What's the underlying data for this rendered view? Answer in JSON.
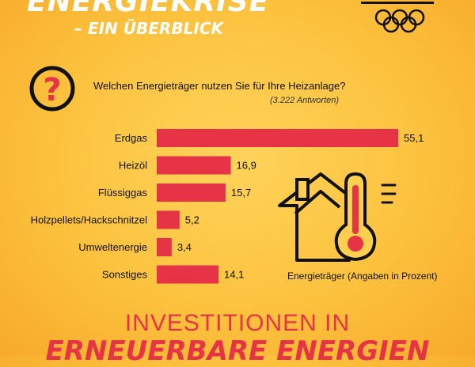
{
  "header": {
    "title": "ENERGIEKRISE",
    "subtitle": "– EIN ÜBERBLICK"
  },
  "question": {
    "text": "Welchen Energieträger nutzen Sie für Ihre Heizanlage?",
    "answers": "(3.222 Antworten)"
  },
  "caption": "Energieträger (Angaben in Prozent)",
  "footer": {
    "line1": "INVESTITIONEN IN",
    "line2": "ERNEUERBARE ENERGIEN"
  },
  "colors": {
    "bar": "#e63346",
    "icon": "#111111"
  },
  "icons": [
    "question-mark-icon",
    "house-thermometer-icon",
    "olympic-rings-logo"
  ],
  "chart_data": {
    "type": "bar",
    "orientation": "horizontal",
    "categories": [
      "Erdgas",
      "Heizöl",
      "Flüssiggas",
      "Holzpellets/Hackschnitzel",
      "Umweltenergie",
      "Sonstiges"
    ],
    "values": [
      55.1,
      16.9,
      15.7,
      5.2,
      3.4,
      14.1
    ],
    "value_labels": [
      "55,1",
      "16,9",
      "15,7",
      "5,2",
      "3,4",
      "14,1"
    ],
    "xlim": [
      0,
      55.1
    ],
    "grid": false
  }
}
